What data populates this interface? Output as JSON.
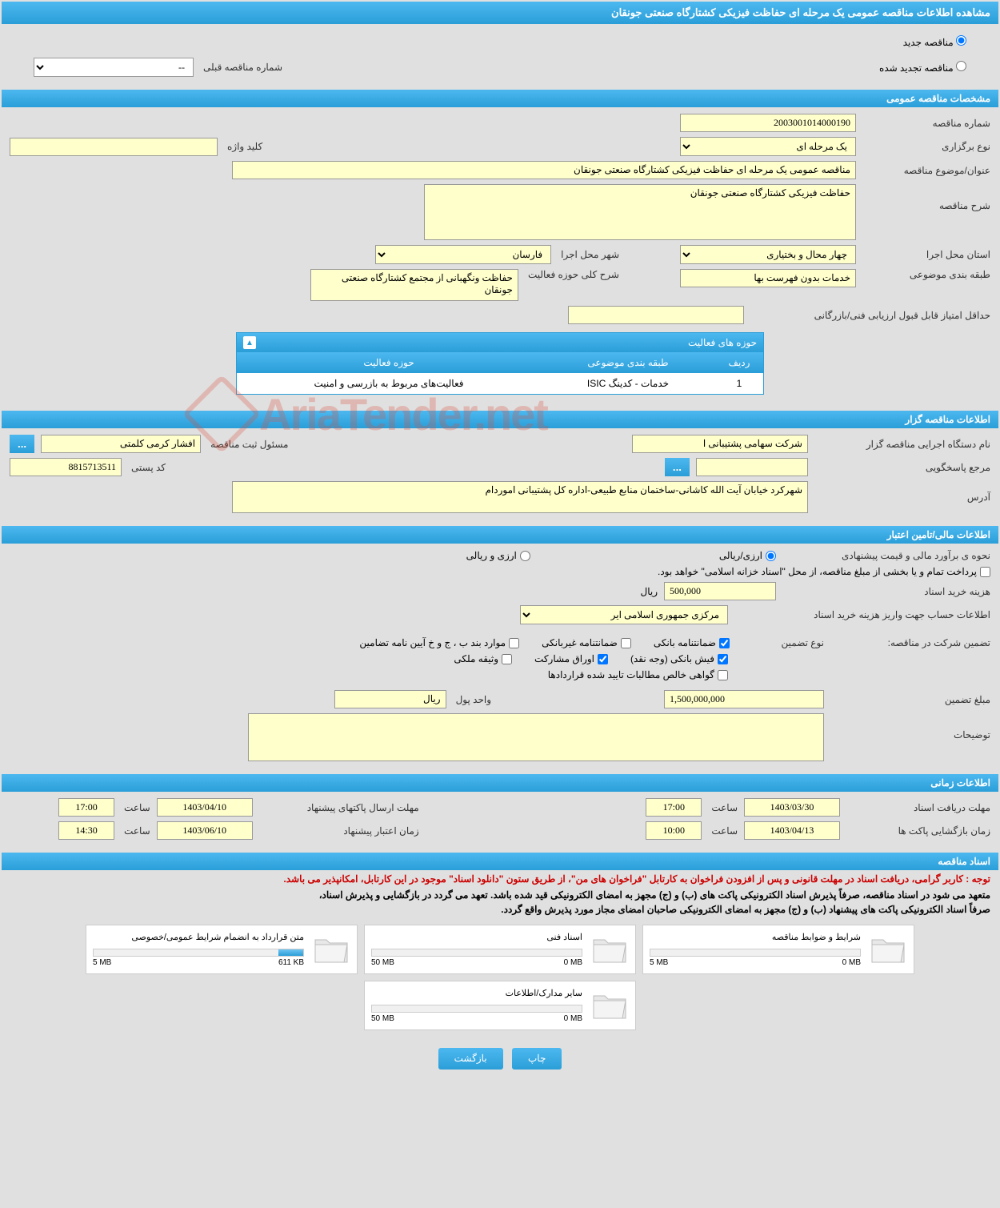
{
  "page_title": "مشاهده اطلاعات مناقصه عمومی یک مرحله ای حفاظت فیزیکی کشتارگاه صنعتی جونقان",
  "radio_options": {
    "new": "مناقصه جدید",
    "renewed": "مناقصه تجدید شده"
  },
  "prev_tender": {
    "label": "شماره مناقصه قبلی",
    "value": "--"
  },
  "sections": {
    "general": "مشخصات مناقصه عمومی",
    "tenderer": "اطلاعات مناقصه گزار",
    "financial": "اطلاعات مالی/تامین اعتبار",
    "timing": "اطلاعات زمانی",
    "documents": "اسناد مناقصه"
  },
  "general": {
    "tender_number_label": "شماره مناقصه",
    "tender_number": "2003001014000190",
    "holding_type_label": "نوع برگزاری",
    "holding_type": "یک مرحله ای",
    "keyword_label": "کلید واژه",
    "keyword": "",
    "subject_label": "عنوان/موضوع مناقصه",
    "subject": "مناقصه عمومی یک مرحله ای حفاظت فیزیکی کشتارگاه صنعتی جونقان",
    "description_label": "شرح مناقصه",
    "description": "حفاظت فیزیکی کشتارگاه صنعتی جونقان",
    "province_label": "استان محل اجرا",
    "province": "چهار محال و بختیاری",
    "city_label": "شهر محل اجرا",
    "city": "فارسان",
    "category_label": "طبقه بندی موضوعی",
    "category": "خدمات بدون فهرست بها",
    "activity_scope_label": "شرح کلی حوزه فعالیت",
    "activity_scope": "حفاظت ونگهبانی از مجتمع کشتارگاه صنعتی جونقان",
    "min_score_label": "حداقل امتیاز قابل قبول ارزیابی فنی/بازرگانی",
    "min_score": ""
  },
  "activity_table": {
    "title": "حوزه های فعالیت",
    "columns": {
      "row": "ردیف",
      "category": "طبقه بندی موضوعی",
      "scope": "حوزه فعالیت"
    },
    "rows": [
      {
        "row": "1",
        "category": "خدمات - کدینگ ISIC",
        "scope": "فعالیت‌های مربوط به بازرسی و امنیت"
      }
    ]
  },
  "tenderer": {
    "org_label": "نام دستگاه اجرایی مناقصه گزار",
    "org": "شرکت سهامی پشتیبانی ا",
    "reg_official_label": "مسئول ثبت مناقصه",
    "reg_official": "افشار کرمی کلمتی",
    "responder_label": "مرجع پاسخگویی",
    "responder": "",
    "postal_label": "کد پستی",
    "postal": "8815713511",
    "address_label": "آدرس",
    "address": "شهرکرد خیابان آیت الله کاشانی-ساختمان منابع طبیعی-اداره کل پشتیبانی اموردام"
  },
  "financial": {
    "estimate_method_label": "نحوه ی برآورد مالی و قیمت پیشنهادی",
    "fx_rial": "ارزی/ریالی",
    "fx_and_rial": "ارزی و ریالی",
    "treasury_note": "پرداخت تمام و یا بخشی از مبلغ مناقصه، از محل \"اسناد خزانه اسلامی\" خواهد بود.",
    "doc_cost_label": "هزینه خرید اسناد",
    "doc_cost": "500,000",
    "rial": "ریال",
    "account_label": "اطلاعات حساب جهت واریز هزینه خرید اسناد",
    "account": "مرکزی جمهوری اسلامی ایر",
    "guarantee_title": "تضمین شرکت در مناقصه:",
    "guarantee_type_label": "نوع تضمین",
    "guarantees": {
      "bank_letter": "ضمانتنامه بانکی",
      "nonbank_letter": "ضمانتنامه غیربانکی",
      "bylaws": "موارد بند ب ، ج و خ آیین نامه تضامین",
      "cash": "فیش بانکی (وجه نقد)",
      "bonds": "اوراق مشارکت",
      "property": "وثیقه ملکی",
      "net_receivables": "گواهی خالص مطالبات تایید شده قراردادها"
    },
    "guarantee_amount_label": "مبلغ تضمین",
    "guarantee_amount": "1,500,000,000",
    "currency_label": "واحد پول",
    "currency": "ریال",
    "notes_label": "توضیحات",
    "notes": ""
  },
  "timing": {
    "receive_deadline_label": "مهلت دریافت اسناد",
    "receive_deadline_date": "1403/03/30",
    "receive_deadline_time": "17:00",
    "submit_deadline_label": "مهلت ارسال پاکتهای پیشنهاد",
    "submit_deadline_date": "1403/04/10",
    "submit_deadline_time": "17:00",
    "opening_label": "زمان بازگشایی پاکت ها",
    "opening_date": "1403/04/13",
    "opening_time": "10:00",
    "validity_label": "زمان اعتبار پیشنهاد",
    "validity_date": "1403/06/10",
    "validity_time": "14:30",
    "hour_label": "ساعت"
  },
  "notices": {
    "red": "توجه : کاربر گرامی، دریافت اسناد در مهلت قانونی و پس از افزودن فراخوان به کارتابل \"فراخوان های من\"، از طریق ستون \"دانلود اسناد\" موجود در این کارتابل، امکانپذیر می باشد.",
    "black1": "متعهد می شود در اسناد مناقصه، صرفاً پذیرش اسناد الکترونیکی پاکت های (ب) و (ج) مجهز به امضای الکترونیکی قید شده باشد. تعهد می گردد در بازگشایی و پذیرش اسناد،",
    "black2": "صرفاً اسناد الکترونیکی پاکت های پیشنهاد (ب) و (ج) مجهز به امضای الکترونیکی صاحبان امضای مجاز مورد پذیرش واقع گردد."
  },
  "doc_files": [
    {
      "title": "شرایط و ضوابط مناقصه",
      "used": "0 MB",
      "total": "5 MB",
      "fill_pct": 0
    },
    {
      "title": "اسناد فنی",
      "used": "0 MB",
      "total": "50 MB",
      "fill_pct": 0
    },
    {
      "title": "متن قرارداد به انضمام شرایط عمومی/خصوصی",
      "used": "611 KB",
      "total": "5 MB",
      "fill_pct": 12
    },
    {
      "title": "سایر مدارک/اطلاعات",
      "used": "0 MB",
      "total": "50 MB",
      "fill_pct": 0
    }
  ],
  "buttons": {
    "print": "چاپ",
    "back": "بازگشت"
  },
  "watermark": "AriaTender.net",
  "colors": {
    "primary_gradient_top": "#4db8f0",
    "primary_gradient_bottom": "#2a9ed8",
    "yellow_bg": "#ffffcc",
    "page_bg": "#e0e0e0",
    "red_text": "#cc0000"
  }
}
